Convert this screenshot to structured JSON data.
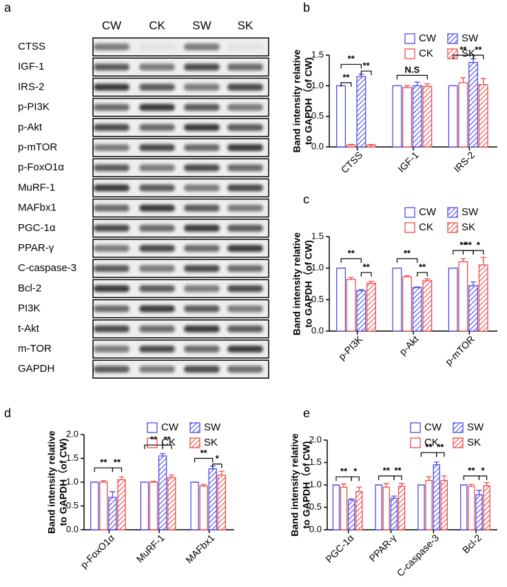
{
  "blot": {
    "label": "a",
    "lanes": [
      "CW",
      "CK",
      "SW",
      "SK"
    ],
    "rows": [
      "CTSS",
      "IGF-1",
      "IRS-2",
      "p-PI3K",
      "p-Akt",
      "p-mTOR",
      "p-FoxO1α",
      "MuRF-1",
      "MAFbx1",
      "PGC-1α",
      "PPAR-γ",
      "C-caspase-3",
      "Bcl-2",
      "PI3K",
      "t-Akt",
      "m-TOR",
      "GAPDH"
    ]
  },
  "chart_data": [
    {
      "type": "bar",
      "label": "b",
      "ylabel": [
        "Band intensity relative",
        "to GAPDH（of CW)"
      ],
      "categories": [
        "CTSS",
        "IGF-1",
        "IRS-2"
      ],
      "ylim": [
        0,
        1.5
      ],
      "yticks": [
        {
          "value": 0,
          "label": "0.0"
        },
        0.5,
        {
          "value": 1,
          "label": "1.0"
        },
        1.5
      ],
      "series": [
        {
          "name": "CW",
          "color": "#4b4bef",
          "pattern": "open",
          "values": [
            1,
            1,
            1
          ],
          "errors": [
            0,
            0,
            0
          ]
        },
        {
          "name": "CK",
          "color": "#ef4b4b",
          "pattern": "open",
          "values": [
            0.03,
            0.97,
            1.05
          ],
          "errors": [
            0.01,
            0.03,
            0.08
          ]
        },
        {
          "name": "SW",
          "color": "#4b4bef",
          "pattern": "hatched",
          "values": [
            1.15,
            1.0,
            1.38
          ],
          "errors": [
            0.04,
            0.06,
            0.06
          ]
        },
        {
          "name": "SK",
          "color": "#ef4b4b",
          "pattern": "hatched",
          "values": [
            0.03,
            0.99,
            1.02
          ],
          "errors": [
            0.01,
            0.04,
            0.1
          ]
        }
      ],
      "annotations": [
        "**",
        "**",
        "**",
        "N.S",
        "**",
        "**"
      ]
    },
    {
      "type": "bar",
      "label": "c",
      "ylabel": [
        "Band intensity relative",
        "to GAPDH（of CW)"
      ],
      "categories": [
        "p-PI3K",
        "p-Akt",
        "p-mTOR"
      ],
      "ylim": [
        0,
        1.5
      ],
      "yticks": [
        {
          "value": 0,
          "label": "0.0"
        },
        0.5,
        {
          "value": 1,
          "label": "1.0"
        },
        1.5
      ],
      "series": [
        {
          "name": "CW",
          "color": "#4b4bef",
          "pattern": "open",
          "values": [
            1,
            1,
            1
          ],
          "errors": [
            0,
            0,
            0
          ]
        },
        {
          "name": "CK",
          "color": "#ef4b4b",
          "pattern": "open",
          "values": [
            0.82,
            0.86,
            1.1
          ],
          "errors": [
            0.03,
            0.02,
            0.05
          ]
        },
        {
          "name": "SW",
          "color": "#4b4bef",
          "pattern": "hatched",
          "values": [
            0.64,
            0.69,
            0.72
          ],
          "errors": [
            0.02,
            0.01,
            0.06
          ]
        },
        {
          "name": "SK",
          "color": "#ef4b4b",
          "pattern": "hatched",
          "values": [
            0.76,
            0.8,
            1.05
          ],
          "errors": [
            0.03,
            0.03,
            0.12
          ]
        }
      ],
      "annotations": [
        "**",
        "**",
        "**",
        "**",
        "**",
        "**",
        "*"
      ]
    },
    {
      "type": "bar",
      "label": "d",
      "ylabel": [
        "Band intensity relative",
        "to GAPDH（of CW)"
      ],
      "categories": [
        "p-FoxO1α",
        "MuRF-1",
        "MAFbx1"
      ],
      "ylim": [
        0,
        2
      ],
      "yticks": [
        {
          "value": 0,
          "label": "0.0"
        },
        0.5,
        {
          "value": 1,
          "label": "1.0"
        },
        1.5,
        {
          "value": 2,
          "label": "2.0"
        }
      ],
      "series": [
        {
          "name": "CW",
          "color": "#4b4bef",
          "pattern": "open",
          "values": [
            1,
            1,
            1
          ],
          "errors": [
            0,
            0,
            0
          ]
        },
        {
          "name": "CK",
          "color": "#ef4b4b",
          "pattern": "open",
          "values": [
            1.0,
            1.0,
            0.92
          ],
          "errors": [
            0.03,
            0.02,
            0.03
          ]
        },
        {
          "name": "SW",
          "color": "#4b4bef",
          "pattern": "hatched",
          "values": [
            0.68,
            1.55,
            1.28
          ],
          "errors": [
            0.12,
            0.05,
            0.06
          ]
        },
        {
          "name": "SK",
          "color": "#ef4b4b",
          "pattern": "hatched",
          "values": [
            1.05,
            1.1,
            1.15
          ],
          "errors": [
            0.06,
            0.05,
            0.08
          ]
        }
      ],
      "annotations": [
        "**",
        "**",
        "**",
        "**",
        "**",
        "*"
      ]
    },
    {
      "type": "bar",
      "label": "e",
      "ylabel": [
        "Band intensity relative",
        "to GAPDH（of CW)"
      ],
      "categories": [
        "PGC-1α",
        "PPAR-γ",
        "C-caspase-3",
        "Bcl-2"
      ],
      "ylim": [
        0,
        2
      ],
      "yticks": [
        {
          "value": 0,
          "label": "0.0"
        },
        0.5,
        {
          "value": 1,
          "label": "1.0"
        },
        1.5,
        {
          "value": 2,
          "label": "2.0"
        }
      ],
      "series": [
        {
          "name": "CW",
          "color": "#4b4bef",
          "pattern": "open",
          "values": [
            1,
            1,
            1,
            1
          ],
          "errors": [
            0,
            0,
            0,
            0
          ]
        },
        {
          "name": "CK",
          "color": "#ef4b4b",
          "pattern": "open",
          "values": [
            0.95,
            0.95,
            1.1,
            0.97
          ],
          "errors": [
            0.07,
            0.08,
            0.08,
            0.04
          ]
        },
        {
          "name": "SW",
          "color": "#4b4bef",
          "pattern": "hatched",
          "values": [
            0.66,
            0.7,
            1.45,
            0.78
          ],
          "errors": [
            0.03,
            0.05,
            0.06,
            0.1
          ]
        },
        {
          "name": "SK",
          "color": "#ef4b4b",
          "pattern": "hatched",
          "values": [
            0.85,
            0.97,
            1.1,
            0.98
          ],
          "errors": [
            0.1,
            0.06,
            0.1,
            0.07
          ]
        }
      ],
      "annotations": [
        "**",
        "*",
        "**",
        "**",
        "**",
        "**",
        "**",
        "*"
      ]
    }
  ]
}
